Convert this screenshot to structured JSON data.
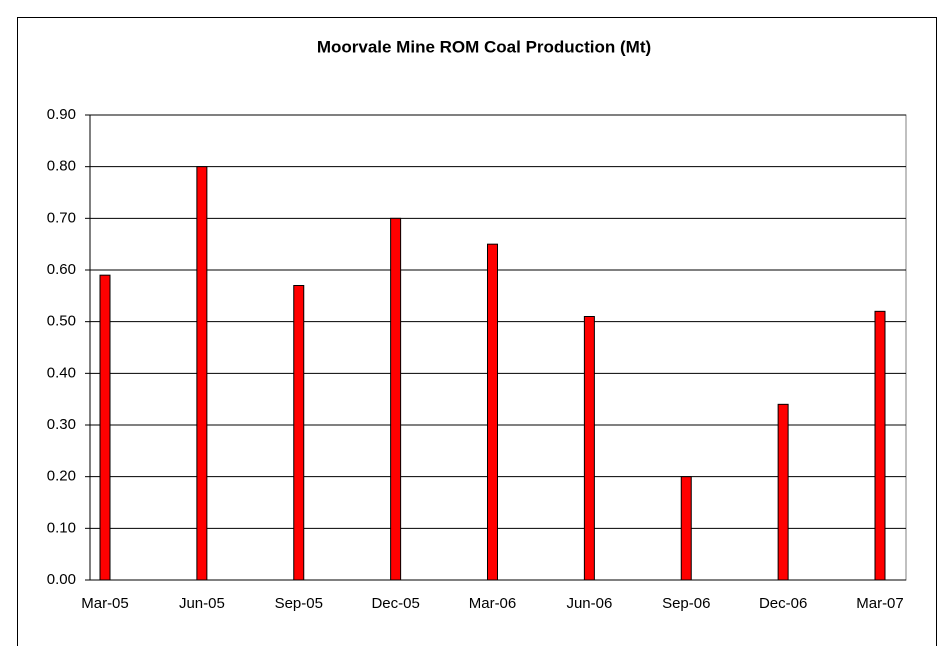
{
  "chart_data": {
    "type": "bar",
    "title": "Moorvale Mine ROM Coal Production (Mt)",
    "categories": [
      "Mar-05",
      "Jun-05",
      "Sep-05",
      "Dec-05",
      "Mar-06",
      "Jun-06",
      "Sep-06",
      "Dec-06",
      "Mar-07"
    ],
    "values": [
      0.59,
      0.8,
      0.57,
      0.7,
      0.65,
      0.51,
      0.2,
      0.34,
      0.52
    ],
    "color": "#ff0000",
    "ylim": [
      0,
      0.9
    ],
    "yticks": [
      {
        "value": 0,
        "label": "0.00"
      },
      {
        "value": 0.1,
        "label": "0.10"
      },
      {
        "value": 0.2,
        "label": "0.20"
      },
      {
        "value": 0.3,
        "label": "0.30"
      },
      {
        "value": 0.4,
        "label": "0.40"
      },
      {
        "value": 0.5,
        "label": "0.50"
      },
      {
        "value": 0.6,
        "label": "0.60"
      },
      {
        "value": 0.7,
        "label": "0.70"
      },
      {
        "value": 0.8,
        "label": "0.80"
      },
      {
        "value": 0.9,
        "label": "0.90"
      }
    ],
    "grid": true
  }
}
